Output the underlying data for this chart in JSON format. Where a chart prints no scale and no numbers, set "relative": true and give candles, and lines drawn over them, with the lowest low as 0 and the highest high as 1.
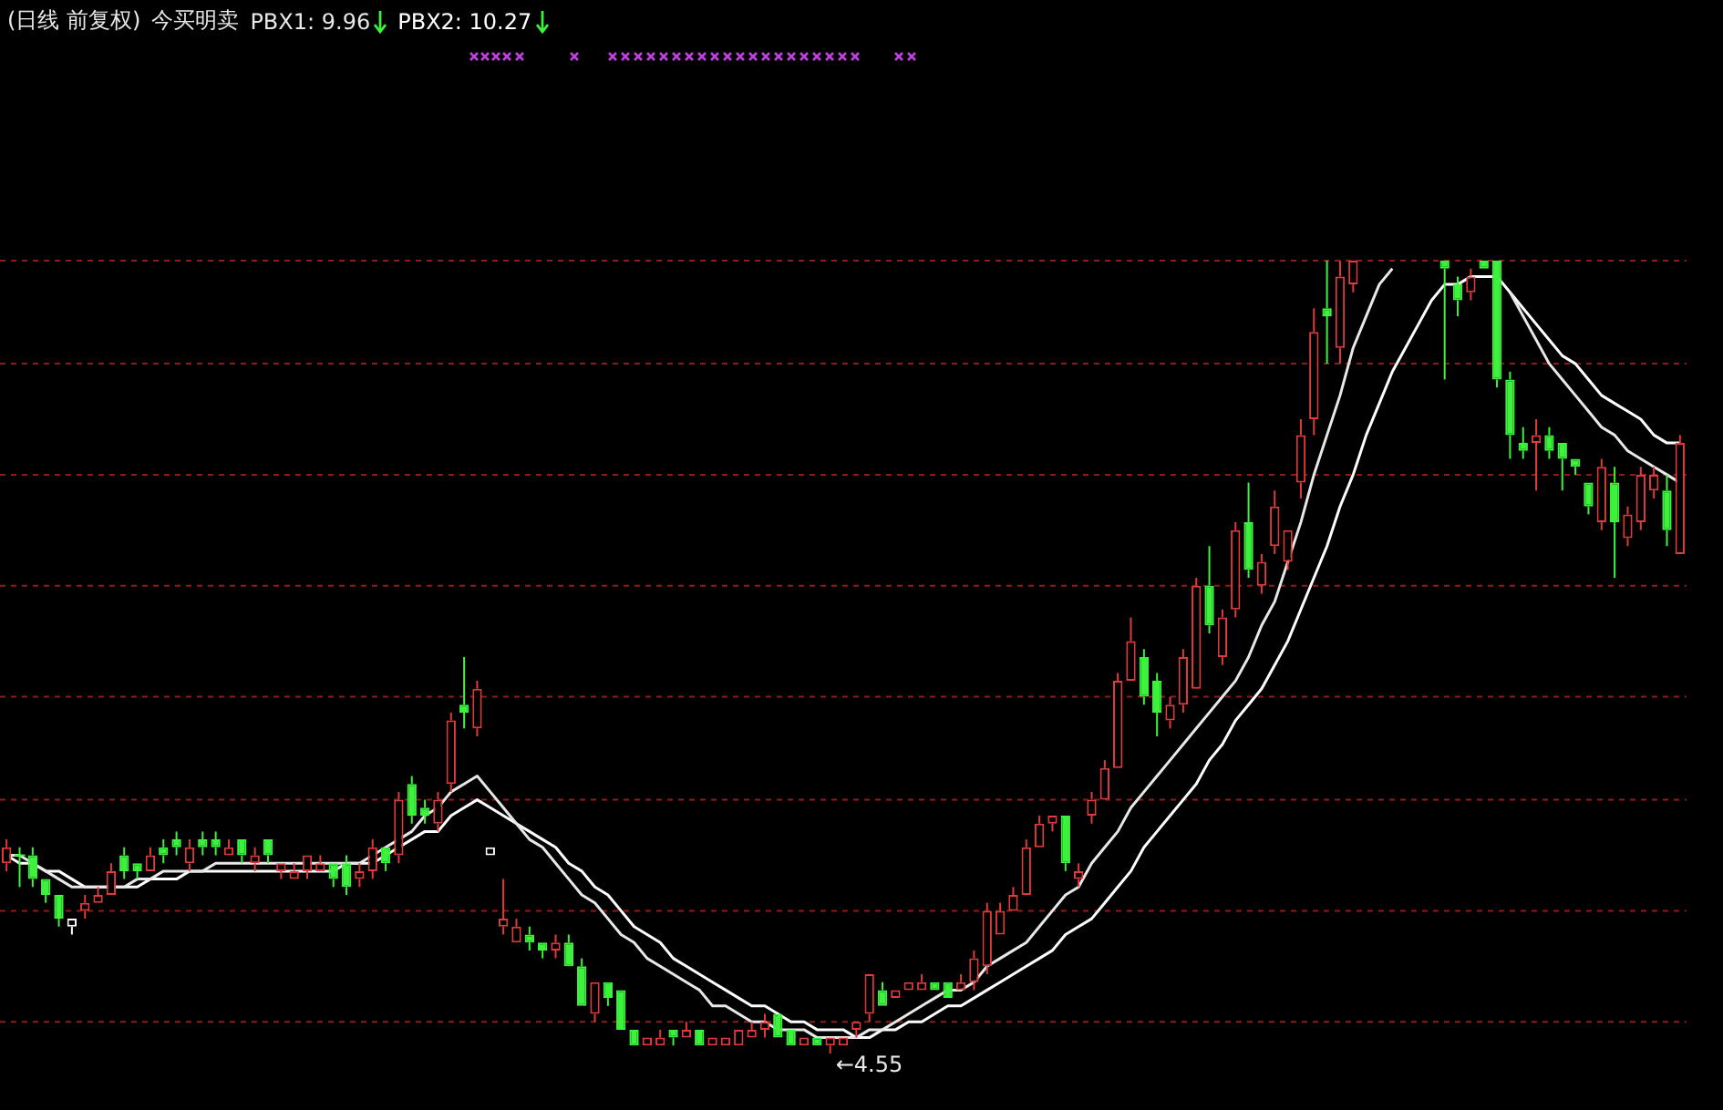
{
  "chart_data": {
    "type": "candlestick",
    "title": "(日线 前复权)",
    "subtitle": "今买明卖",
    "relative": true,
    "legend": "top left",
    "ref_lines": [
      {
        "axis": "y",
        "value": 1,
        "color": "#8e1c1c",
        "line_style": "dashed"
      },
      {
        "axis": "y",
        "value": 0.87,
        "color": "#8e1c1c",
        "line_style": "dashed"
      },
      {
        "axis": "y",
        "value": 0.73,
        "color": "#8e1c1c",
        "line_style": "dashed"
      },
      {
        "axis": "y",
        "value": 0.59,
        "color": "#8e1c1c",
        "line_style": "dashed"
      },
      {
        "axis": "y",
        "value": 0.45,
        "color": "#8e1c1c",
        "line_style": "dashed"
      },
      {
        "axis": "y",
        "value": 0.32,
        "color": "#8e1c1c",
        "line_style": "dashed"
      },
      {
        "axis": "y",
        "value": 0.18,
        "color": "#8e1c1c",
        "line_style": "dashed"
      },
      {
        "axis": "y",
        "value": 0.04,
        "color": "#8e1c1c",
        "line_style": "dashed"
      }
    ],
    "categories": [
      null,
      null,
      null,
      null,
      null,
      null,
      null,
      null,
      null,
      null,
      null,
      null,
      null,
      null,
      null,
      null,
      null,
      null,
      null,
      null,
      null,
      null,
      null,
      null,
      null,
      null,
      null,
      null,
      null,
      null,
      null,
      null,
      null,
      null,
      null,
      null,
      null,
      null,
      null,
      null,
      null,
      null,
      null,
      null,
      null,
      null,
      null,
      null,
      null,
      null,
      null,
      null,
      null,
      null,
      null,
      null,
      null,
      null,
      null,
      null,
      null,
      null,
      null,
      null,
      null,
      null,
      null,
      null,
      null,
      null,
      null,
      null,
      null,
      null,
      null,
      null,
      null,
      null,
      null,
      null,
      null,
      null,
      null,
      null,
      null,
      null,
      null,
      null,
      null,
      null,
      null,
      null,
      null,
      null,
      null,
      null,
      null,
      null,
      null,
      null,
      null,
      null,
      null,
      null,
      null,
      null,
      null,
      null,
      null,
      null,
      null,
      null,
      null,
      null,
      null,
      null,
      null,
      null,
      null,
      null,
      null,
      null,
      null,
      null,
      null,
      null,
      null,
      null,
      null
    ],
    "ohlc": [
      [
        0.24,
        0.27,
        0.23,
        0.26
      ],
      [
        0.25,
        0.26,
        0.21,
        0.25
      ],
      [
        0.25,
        0.26,
        0.21,
        0.22
      ],
      [
        0.22,
        0.22,
        0.19,
        0.2
      ],
      [
        0.2,
        0.2,
        0.16,
        0.17
      ],
      [
        0.16,
        0.17,
        0.15,
        0.17
      ],
      [
        0.18,
        0.2,
        0.17,
        0.19
      ],
      [
        0.19,
        0.21,
        0.19,
        0.2
      ],
      [
        0.2,
        0.24,
        0.2,
        0.23
      ],
      [
        0.25,
        0.26,
        0.22,
        0.23
      ],
      [
        0.24,
        0.24,
        0.22,
        0.23
      ],
      [
        0.23,
        0.26,
        0.23,
        0.25
      ],
      [
        0.26,
        0.27,
        0.24,
        0.25
      ],
      [
        0.27,
        0.28,
        0.25,
        0.26
      ],
      [
        0.24,
        0.27,
        0.23,
        0.26
      ],
      [
        0.27,
        0.28,
        0.25,
        0.26
      ],
      [
        0.27,
        0.28,
        0.25,
        0.26
      ],
      [
        0.25,
        0.27,
        0.25,
        0.26
      ],
      [
        0.27,
        0.27,
        0.24,
        0.25
      ],
      [
        0.24,
        0.26,
        0.23,
        0.25
      ],
      [
        0.27,
        0.27,
        0.24,
        0.25
      ],
      [
        0.23,
        0.24,
        0.22,
        0.24
      ],
      [
        0.22,
        0.24,
        0.22,
        0.23
      ],
      [
        0.23,
        0.25,
        0.22,
        0.25
      ],
      [
        0.23,
        0.25,
        0.23,
        0.24
      ],
      [
        0.24,
        0.24,
        0.21,
        0.22
      ],
      [
        0.24,
        0.25,
        0.2,
        0.21
      ],
      [
        0.22,
        0.24,
        0.21,
        0.23
      ],
      [
        0.23,
        0.27,
        0.22,
        0.26
      ],
      [
        0.26,
        0.26,
        0.23,
        0.24
      ],
      [
        0.25,
        0.33,
        0.24,
        0.32
      ],
      [
        0.34,
        0.35,
        0.29,
        0.3
      ],
      [
        0.31,
        0.32,
        0.29,
        0.3
      ],
      [
        0.29,
        0.33,
        0.28,
        0.32
      ],
      [
        0.34,
        0.43,
        0.33,
        0.42
      ],
      [
        0.44,
        0.5,
        0.41,
        0.43
      ],
      [
        0.41,
        0.47,
        0.4,
        0.46
      ],
      [
        0.25,
        0.26,
        0.25,
        0.26
      ],
      [
        0.16,
        0.22,
        0.15,
        0.17
      ],
      [
        0.14,
        0.17,
        0.14,
        0.16
      ],
      [
        0.15,
        0.16,
        0.13,
        0.14
      ],
      [
        0.14,
        0.14,
        0.12,
        0.13
      ],
      [
        0.13,
        0.15,
        0.12,
        0.14
      ],
      [
        0.14,
        0.15,
        0.11,
        0.11
      ],
      [
        0.11,
        0.12,
        0.06,
        0.06
      ],
      [
        0.05,
        0.09,
        0.04,
        0.09
      ],
      [
        0.09,
        0.09,
        0.06,
        0.07
      ],
      [
        0.08,
        0.08,
        0.03,
        0.03
      ],
      [
        0.03,
        0.03,
        0.01,
        0.01
      ],
      [
        0.01,
        0.02,
        0.01,
        0.02
      ],
      [
        0.01,
        0.03,
        0.01,
        0.02
      ],
      [
        0.03,
        0.03,
        0.01,
        0.02
      ],
      [
        0.02,
        0.04,
        0.02,
        0.03
      ],
      [
        0.03,
        0.03,
        0.01,
        0.01
      ],
      [
        0.01,
        0.02,
        0.01,
        0.02
      ],
      [
        0.01,
        0.02,
        0.01,
        0.02
      ],
      [
        0.01,
        0.03,
        0.01,
        0.03
      ],
      [
        0.02,
        0.04,
        0.02,
        0.03
      ],
      [
        0.03,
        0.05,
        0.02,
        0.04
      ],
      [
        0.05,
        0.05,
        0.02,
        0.02
      ],
      [
        0.03,
        0.03,
        0.01,
        0.01
      ],
      [
        0.01,
        0.02,
        0.01,
        0.02
      ],
      [
        0.02,
        0.02,
        0.01,
        0.01
      ],
      [
        0.01,
        0.02,
        0,
        0.02
      ],
      [
        0.01,
        0.02,
        0.01,
        0.02
      ],
      [
        0.03,
        0.04,
        0.02,
        0.04
      ],
      [
        0.05,
        0.1,
        0.04,
        0.1
      ],
      [
        0.08,
        0.09,
        0.06,
        0.06
      ],
      [
        0.07,
        0.08,
        0.07,
        0.08
      ],
      [
        0.08,
        0.09,
        0.08,
        0.09
      ],
      [
        0.08,
        0.1,
        0.08,
        0.09
      ],
      [
        0.09,
        0.09,
        0.08,
        0.08
      ],
      [
        0.09,
        0.09,
        0.07,
        0.07
      ],
      [
        0.08,
        0.1,
        0.08,
        0.09
      ],
      [
        0.09,
        0.13,
        0.08,
        0.12
      ],
      [
        0.11,
        0.19,
        0.1,
        0.18
      ],
      [
        0.15,
        0.19,
        0.15,
        0.18
      ],
      [
        0.18,
        0.21,
        0.18,
        0.2
      ],
      [
        0.2,
        0.27,
        0.2,
        0.26
      ],
      [
        0.26,
        0.3,
        0.26,
        0.29
      ],
      [
        0.29,
        0.3,
        0.28,
        0.3
      ],
      [
        0.3,
        0.3,
        0.23,
        0.24
      ],
      [
        0.22,
        0.24,
        0.21,
        0.23
      ],
      [
        0.3,
        0.33,
        0.29,
        0.32
      ],
      [
        0.32,
        0.37,
        0.32,
        0.36
      ],
      [
        0.36,
        0.48,
        0.36,
        0.47
      ],
      [
        0.47,
        0.55,
        0.47,
        0.52
      ],
      [
        0.5,
        0.51,
        0.44,
        0.45
      ],
      [
        0.47,
        0.48,
        0.4,
        0.43
      ],
      [
        0.42,
        0.45,
        0.41,
        0.44
      ],
      [
        0.44,
        0.51,
        0.43,
        0.5
      ],
      [
        0.46,
        0.6,
        0.46,
        0.59
      ],
      [
        0.59,
        0.64,
        0.53,
        0.54
      ],
      [
        0.5,
        0.56,
        0.49,
        0.55
      ],
      [
        0.56,
        0.67,
        0.55,
        0.66
      ],
      [
        0.67,
        0.72,
        0.6,
        0.61
      ],
      [
        0.59,
        0.63,
        0.58,
        0.62
      ],
      [
        0.64,
        0.71,
        0.63,
        0.69
      ],
      [
        0.62,
        0.66,
        0.61,
        0.66
      ],
      [
        0.72,
        0.8,
        0.7,
        0.78
      ],
      [
        0.8,
        0.94,
        0.78,
        0.91
      ],
      [
        0.94,
        1,
        0.87,
        0.93
      ],
      [
        0.89,
        1,
        0.87,
        0.98
      ],
      [
        0.97,
        1,
        0.96,
        1
      ],
      null,
      null,
      null,
      null,
      null,
      null,
      [
        1,
        1,
        0.85,
        0.99
      ],
      [
        0.97,
        0.98,
        0.93,
        0.95
      ],
      [
        0.96,
        0.99,
        0.95,
        0.98
      ],
      [
        1,
        1,
        0.99,
        0.99
      ],
      [
        1,
        1,
        0.84,
        0.85
      ],
      [
        0.85,
        0.86,
        0.75,
        0.78
      ],
      [
        0.77,
        0.79,
        0.75,
        0.76
      ],
      [
        0.77,
        0.8,
        0.71,
        0.78
      ],
      [
        0.78,
        0.79,
        0.75,
        0.76
      ],
      [
        0.77,
        0.77,
        0.71,
        0.75
      ],
      [
        0.75,
        0.75,
        0.73,
        0.74
      ],
      [
        0.72,
        0.72,
        0.68,
        0.69
      ],
      [
        0.67,
        0.75,
        0.66,
        0.74
      ],
      [
        0.72,
        0.74,
        0.6,
        0.67
      ],
      [
        0.65,
        0.69,
        0.64,
        0.68
      ],
      [
        0.67,
        0.74,
        0.66,
        0.73
      ],
      [
        0.71,
        0.74,
        0.7,
        0.73
      ],
      [
        0.71,
        0.73,
        0.64,
        0.66
      ],
      [
        0.63,
        0.78,
        0.63,
        0.77
      ]
    ],
    "colors": [
      "#e03a3a",
      "#3df23d",
      "#3df23d",
      "#3df23d",
      "#3df23d",
      "#ffffff",
      "#e03a3a",
      "#e03a3a",
      "#e03a3a",
      "#3df23d",
      "#3df23d",
      "#e03a3a",
      "#3df23d",
      "#3df23d",
      "#e03a3a",
      "#3df23d",
      "#3df23d",
      "#e03a3a",
      "#3df23d",
      "#e03a3a",
      "#3df23d",
      "#e03a3a",
      "#e03a3a",
      "#e03a3a",
      "#e03a3a",
      "#3df23d",
      "#3df23d",
      "#e03a3a",
      "#e03a3a",
      "#3df23d",
      "#e03a3a",
      "#3df23d",
      "#3df23d",
      "#e03a3a",
      "#e03a3a",
      "#3df23d",
      "#e03a3a",
      "#ffffff",
      "#e03a3a",
      "#e03a3a",
      "#3df23d",
      "#3df23d",
      "#e03a3a",
      "#3df23d",
      "#3df23d",
      "#e03a3a",
      "#3df23d",
      "#3df23d",
      "#3df23d",
      "#e03a3a",
      "#e03a3a",
      "#3df23d",
      "#e03a3a",
      "#3df23d",
      "#e03a3a",
      "#e03a3a",
      "#e03a3a",
      "#e03a3a",
      "#e03a3a",
      "#3df23d",
      "#3df23d",
      "#e03a3a",
      "#3df23d",
      "#e03a3a",
      "#e03a3a",
      "#e03a3a",
      "#e03a3a",
      "#3df23d",
      "#e03a3a",
      "#e03a3a",
      "#e03a3a",
      "#3df23d",
      "#3df23d",
      "#e03a3a",
      "#e03a3a",
      "#e03a3a",
      "#e03a3a",
      "#e03a3a",
      "#e03a3a",
      "#e03a3a",
      "#e03a3a",
      "#3df23d",
      "#e03a3a",
      "#e03a3a",
      "#e03a3a",
      "#e03a3a",
      "#e03a3a",
      "#3df23d",
      "#3df23d",
      "#e03a3a",
      "#e03a3a",
      "#e03a3a",
      "#3df23d",
      "#e03a3a",
      "#e03a3a",
      "#3df23d",
      "#e03a3a",
      "#e03a3a",
      "#e03a3a",
      "#e03a3a",
      "#e03a3a",
      "#3df23d",
      "#e03a3a",
      "#e03a3a",
      null,
      null,
      null,
      null,
      null,
      null,
      "#3df23d",
      "#3df23d",
      "#e03a3a",
      "#3df23d",
      "#3df23d",
      "#3df23d",
      "#3df23d",
      "#e03a3a",
      "#3df23d",
      "#3df23d",
      "#3df23d",
      "#3df23d",
      "#e03a3a",
      "#3df23d",
      "#e03a3a",
      "#e03a3a",
      "#e03a3a",
      "#3df23d",
      "#e03a3a"
    ],
    "series": [
      {
        "name": "PBX1: 9.96",
        "type": "line",
        "color": "#e8e8e8",
        "values": [
          0.25,
          0.25,
          0.24,
          0.23,
          0.22,
          0.21,
          0.21,
          0.21,
          0.21,
          0.21,
          0.22,
          0.22,
          0.23,
          0.23,
          0.23,
          0.23,
          0.24,
          0.24,
          0.24,
          0.24,
          0.24,
          0.24,
          0.24,
          0.24,
          0.24,
          0.24,
          0.24,
          0.24,
          0.25,
          0.26,
          0.27,
          0.28,
          0.3,
          0.31,
          0.33,
          0.34,
          0.35,
          0.33,
          0.31,
          0.29,
          0.27,
          0.26,
          0.24,
          0.22,
          0.2,
          0.19,
          0.17,
          0.15,
          0.14,
          0.12,
          0.11,
          0.1,
          0.09,
          0.08,
          0.06,
          0.06,
          0.05,
          0.04,
          0.04,
          0.03,
          0.03,
          0.03,
          0.02,
          0.02,
          0.02,
          0.02,
          0.03,
          0.03,
          0.04,
          0.05,
          0.06,
          0.07,
          0.08,
          0.08,
          0.09,
          0.11,
          0.12,
          0.13,
          0.14,
          0.16,
          0.18,
          0.2,
          0.21,
          0.24,
          0.26,
          0.28,
          0.31,
          0.33,
          0.35,
          0.37,
          0.39,
          0.41,
          0.43,
          0.45,
          0.47,
          0.5,
          0.54,
          0.57,
          0.62,
          0.67,
          0.73,
          0.78,
          0.83,
          0.89,
          0.93,
          0.97,
          0.99,
          null,
          null,
          null,
          null,
          null,
          null,
          null,
          null,
          0.96,
          0.93,
          0.9,
          0.87,
          0.85,
          0.83,
          0.81,
          0.79,
          0.78,
          0.76,
          0.75,
          0.74,
          0.73,
          0.72
        ]
      },
      {
        "name": "PBX2: 10.27",
        "type": "line",
        "color": "#ffffff",
        "values": [
          0.25,
          0.24,
          0.24,
          0.23,
          0.23,
          0.22,
          0.21,
          0.21,
          0.21,
          0.21,
          0.21,
          0.22,
          0.22,
          0.22,
          0.23,
          0.23,
          0.23,
          0.23,
          0.23,
          0.23,
          0.23,
          0.23,
          0.23,
          0.23,
          0.23,
          0.23,
          0.24,
          0.24,
          0.24,
          0.25,
          0.26,
          0.27,
          0.28,
          0.28,
          0.3,
          0.31,
          0.32,
          0.31,
          0.3,
          0.29,
          0.28,
          0.27,
          0.26,
          0.24,
          0.23,
          0.21,
          0.2,
          0.18,
          0.16,
          0.15,
          0.14,
          0.12,
          0.11,
          0.1,
          0.09,
          0.08,
          0.07,
          0.06,
          0.06,
          0.05,
          0.04,
          0.04,
          0.03,
          0.03,
          0.03,
          0.02,
          0.02,
          0.03,
          0.03,
          0.04,
          0.04,
          0.05,
          0.06,
          0.06,
          0.07,
          0.08,
          0.09,
          0.1,
          0.11,
          0.12,
          0.13,
          0.15,
          0.16,
          0.17,
          0.19,
          0.21,
          0.23,
          0.26,
          0.28,
          0.3,
          0.32,
          0.34,
          0.37,
          0.39,
          0.42,
          0.44,
          0.46,
          0.49,
          0.52,
          0.56,
          0.6,
          0.64,
          0.69,
          0.73,
          0.78,
          0.82,
          0.86,
          0.89,
          0.92,
          0.95,
          0.97,
          0.97,
          0.98,
          0.98,
          0.98,
          0.96,
          0.94,
          0.92,
          0.9,
          0.88,
          0.87,
          0.85,
          0.83,
          0.82,
          0.81,
          0.8,
          0.78,
          0.77,
          0.77
        ]
      }
    ],
    "annotations": [
      "←4.55"
    ]
  }
}
